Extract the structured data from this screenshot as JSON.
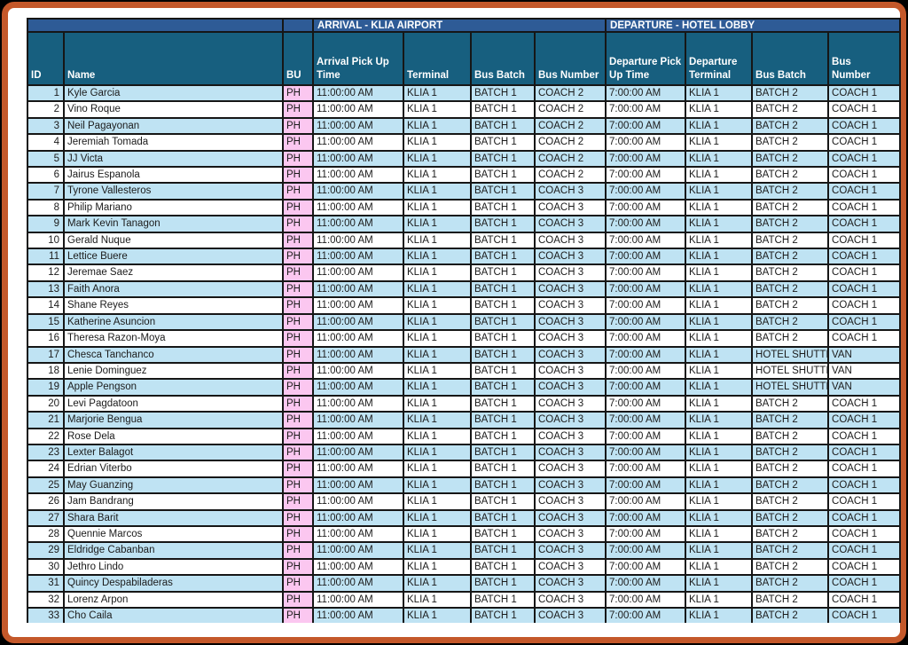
{
  "banner": {
    "arrival": "ARRIVAL - KLIA AIRPORT",
    "departure": "DEPARTURE - HOTEL LOBBY"
  },
  "table": {
    "headers": {
      "id": "ID",
      "name": "Name",
      "bu": "BU",
      "arr_time": "Arrival Pick Up Time",
      "arr_terminal": "Terminal",
      "arr_batch": "Bus Batch",
      "arr_number": "Bus Number",
      "dep_time": "Departure Pick Up Time",
      "dep_terminal": "Departure Terminal",
      "dep_batch": "Bus Batch",
      "dep_number": "Bus\nNumber"
    },
    "rows": [
      [
        "1",
        "Kyle Garcia",
        "PH",
        "11:00:00 AM",
        "KLIA 1",
        "BATCH 1",
        "COACH 2",
        "7:00:00 AM",
        "KLIA 1",
        "BATCH 2",
        "COACH 1"
      ],
      [
        "2",
        "Vino Roque",
        "PH",
        "11:00:00 AM",
        "KLIA 1",
        "BATCH 1",
        "COACH 2",
        "7:00:00 AM",
        "KLIA 1",
        "BATCH 2",
        "COACH 1"
      ],
      [
        "3",
        "Neil Pagayonan",
        "PH",
        "11:00:00 AM",
        "KLIA 1",
        "BATCH 1",
        "COACH 2",
        "7:00:00 AM",
        "KLIA 1",
        "BATCH 2",
        "COACH 1"
      ],
      [
        "4",
        "Jeremiah Tomada",
        "PH",
        "11:00:00 AM",
        "KLIA 1",
        "BATCH 1",
        "COACH 2",
        "7:00:00 AM",
        "KLIA 1",
        "BATCH 2",
        "COACH 1"
      ],
      [
        "5",
        "JJ Victa",
        "PH",
        "11:00:00 AM",
        "KLIA 1",
        "BATCH 1",
        "COACH 2",
        "7:00:00 AM",
        "KLIA 1",
        "BATCH 2",
        "COACH 1"
      ],
      [
        "6",
        "Jairus Espanola",
        "PH",
        "11:00:00 AM",
        "KLIA 1",
        "BATCH 1",
        "COACH 2",
        "7:00:00 AM",
        "KLIA 1",
        "BATCH 2",
        "COACH 1"
      ],
      [
        "7",
        "Tyrone Vallesteros",
        "PH",
        "11:00:00 AM",
        "KLIA 1",
        "BATCH 1",
        "COACH 3",
        "7:00:00 AM",
        "KLIA 1",
        "BATCH 2",
        "COACH 1"
      ],
      [
        "8",
        "Philip Mariano",
        "PH",
        "11:00:00 AM",
        "KLIA 1",
        "BATCH 1",
        "COACH 3",
        "7:00:00 AM",
        "KLIA 1",
        "BATCH 2",
        "COACH 1"
      ],
      [
        "9",
        "Mark Kevin Tanagon",
        "PH",
        "11:00:00 AM",
        "KLIA 1",
        "BATCH 1",
        "COACH 3",
        "7:00:00 AM",
        "KLIA 1",
        "BATCH 2",
        "COACH 1"
      ],
      [
        "10",
        "Gerald Nuque",
        "PH",
        "11:00:00 AM",
        "KLIA 1",
        "BATCH 1",
        "COACH 3",
        "7:00:00 AM",
        "KLIA 1",
        "BATCH 2",
        "COACH 1"
      ],
      [
        "11",
        "Lettice Buere",
        "PH",
        "11:00:00 AM",
        "KLIA 1",
        "BATCH 1",
        "COACH 3",
        "7:00:00 AM",
        "KLIA 1",
        "BATCH 2",
        "COACH 1"
      ],
      [
        "12",
        "Jeremae Saez",
        "PH",
        "11:00:00 AM",
        "KLIA 1",
        "BATCH 1",
        "COACH 3",
        "7:00:00 AM",
        "KLIA 1",
        "BATCH 2",
        "COACH 1"
      ],
      [
        "13",
        "Faith Anora",
        "PH",
        "11:00:00 AM",
        "KLIA 1",
        "BATCH 1",
        "COACH 3",
        "7:00:00 AM",
        "KLIA 1",
        "BATCH 2",
        "COACH 1"
      ],
      [
        "14",
        "Shane Reyes",
        "PH",
        "11:00:00 AM",
        "KLIA 1",
        "BATCH 1",
        "COACH 3",
        "7:00:00 AM",
        "KLIA 1",
        "BATCH 2",
        "COACH 1"
      ],
      [
        "15",
        "Katherine Asuncion",
        "PH",
        "11:00:00 AM",
        "KLIA 1",
        "BATCH 1",
        "COACH 3",
        "7:00:00 AM",
        "KLIA 1",
        "BATCH 2",
        "COACH 1"
      ],
      [
        "16",
        "Theresa Razon-Moya",
        "PH",
        "11:00:00 AM",
        "KLIA 1",
        "BATCH 1",
        "COACH 3",
        "7:00:00 AM",
        "KLIA 1",
        "BATCH 2",
        "COACH 1"
      ],
      [
        "17",
        "Chesca Tanchanco",
        "PH",
        "11:00:00 AM",
        "KLIA 1",
        "BATCH 1",
        "COACH 3",
        "7:00:00 AM",
        "KLIA 1",
        "HOTEL SHUTTLE",
        "VAN"
      ],
      [
        "18",
        "Lenie Dominguez",
        "PH",
        "11:00:00 AM",
        "KLIA 1",
        "BATCH 1",
        "COACH 3",
        "7:00:00 AM",
        "KLIA 1",
        "HOTEL SHUTTLE",
        "VAN"
      ],
      [
        "19",
        "Apple Pengson",
        "PH",
        "11:00:00 AM",
        "KLIA 1",
        "BATCH 1",
        "COACH 3",
        "7:00:00 AM",
        "KLIA 1",
        "HOTEL SHUTTLE",
        "VAN"
      ],
      [
        "20",
        "Levi Pagdatoon",
        "PH",
        "11:00:00 AM",
        "KLIA 1",
        "BATCH 1",
        "COACH 3",
        "7:00:00 AM",
        "KLIA 1",
        "BATCH 2",
        "COACH 1"
      ],
      [
        "21",
        "Marjorie Bengua",
        "PH",
        "11:00:00 AM",
        "KLIA 1",
        "BATCH 1",
        "COACH 3",
        "7:00:00 AM",
        "KLIA 1",
        "BATCH 2",
        "COACH 1"
      ],
      [
        "22",
        "Rose Dela",
        "PH",
        "11:00:00 AM",
        "KLIA 1",
        "BATCH 1",
        "COACH 3",
        "7:00:00 AM",
        "KLIA 1",
        "BATCH 2",
        "COACH 1"
      ],
      [
        "23",
        "Lexter Balagot",
        "PH",
        "11:00:00 AM",
        "KLIA 1",
        "BATCH 1",
        "COACH 3",
        "7:00:00 AM",
        "KLIA 1",
        "BATCH 2",
        "COACH 1"
      ],
      [
        "24",
        "Edrian Viterbo",
        "PH",
        "11:00:00 AM",
        "KLIA 1",
        "BATCH 1",
        "COACH 3",
        "7:00:00 AM",
        "KLIA 1",
        "BATCH 2",
        "COACH 1"
      ],
      [
        "25",
        "May Guanzing",
        "PH",
        "11:00:00 AM",
        "KLIA 1",
        "BATCH 1",
        "COACH 3",
        "7:00:00 AM",
        "KLIA 1",
        "BATCH 2",
        "COACH 1"
      ],
      [
        "26",
        "Jam Bandrang",
        "PH",
        "11:00:00 AM",
        "KLIA 1",
        "BATCH 1",
        "COACH 3",
        "7:00:00 AM",
        "KLIA 1",
        "BATCH 2",
        "COACH 1"
      ],
      [
        "27",
        "Shara Barit",
        "PH",
        "11:00:00 AM",
        "KLIA 1",
        "BATCH 1",
        "COACH 3",
        "7:00:00 AM",
        "KLIA 1",
        "BATCH 2",
        "COACH 1"
      ],
      [
        "28",
        "Quennie Marcos",
        "PH",
        "11:00:00 AM",
        "KLIA 1",
        "BATCH 1",
        "COACH 3",
        "7:00:00 AM",
        "KLIA 1",
        "BATCH 2",
        "COACH 1"
      ],
      [
        "29",
        "Eldridge Cabanban",
        "PH",
        "11:00:00 AM",
        "KLIA 1",
        "BATCH 1",
        "COACH 3",
        "7:00:00 AM",
        "KLIA 1",
        "BATCH 2",
        "COACH 1"
      ],
      [
        "30",
        "Jethro Lindo",
        "PH",
        "11:00:00 AM",
        "KLIA 1",
        "BATCH 1",
        "COACH 3",
        "7:00:00 AM",
        "KLIA 1",
        "BATCH 2",
        "COACH 1"
      ],
      [
        "31",
        "Quincy Despabiladeras",
        "PH",
        "11:00:00 AM",
        "KLIA 1",
        "BATCH 1",
        "COACH 3",
        "7:00:00 AM",
        "KLIA 1",
        "BATCH 2",
        "COACH 1"
      ],
      [
        "32",
        "Lorenz Arpon",
        "PH",
        "11:00:00 AM",
        "KLIA 1",
        "BATCH 1",
        "COACH 3",
        "7:00:00 AM",
        "KLIA 1",
        "BATCH 2",
        "COACH 1"
      ],
      [
        "33",
        "Cho Caila",
        "PH",
        "11:00:00 AM",
        "KLIA 1",
        "BATCH 1",
        "COACH 3",
        "7:00:00 AM",
        "KLIA 1",
        "BATCH 2",
        "COACH 1"
      ]
    ]
  },
  "colors": {
    "banner_blue": "#2e5b96",
    "header_teal": "#175f7f",
    "row_alt_blue": "#bfe3f3",
    "bu_pink": "#fbc7f0",
    "frame_orange": "#c4582a",
    "grid_black": "#161616"
  }
}
